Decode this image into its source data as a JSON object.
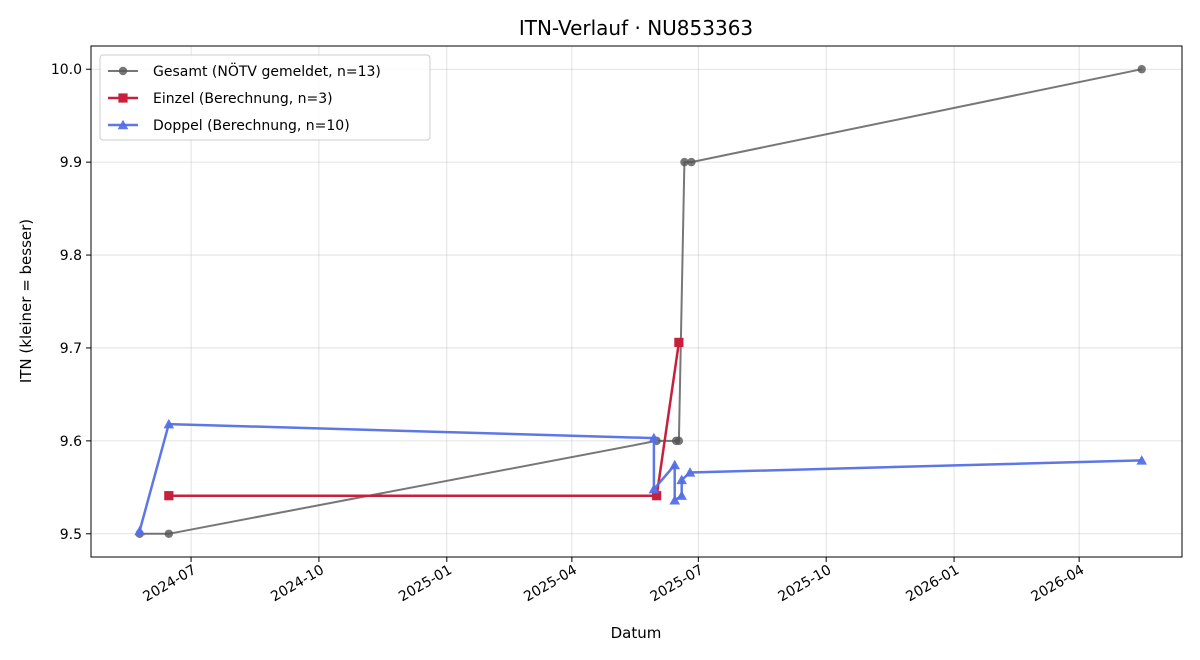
{
  "chart_data": {
    "type": "line",
    "title": "ITN-Verlauf · NU853363",
    "xlabel": "Datum",
    "ylabel": "ITN  (kleiner = besser)",
    "xlim": [
      "2024-04-20",
      "2026-06-14"
    ],
    "ylim": [
      9.475,
      10.025
    ],
    "x_ticks": [
      "2024-07-01",
      "2024-10-01",
      "2025-01-01",
      "2025-04-01",
      "2025-07-01",
      "2025-10-01",
      "2026-01-01",
      "2026-04-01"
    ],
    "x_tick_labels": [
      "2024-07",
      "2024-10",
      "2025-01",
      "2025-04",
      "2025-07",
      "2025-10",
      "2026-01",
      "2026-04"
    ],
    "y_ticks": [
      9.5,
      9.6,
      9.7,
      9.8,
      9.9,
      10.0
    ],
    "y_tick_labels": [
      "9.5",
      "9.6",
      "9.7",
      "9.8",
      "9.9",
      "10.0"
    ],
    "grid": true,
    "legend_position": "top-left",
    "series": [
      {
        "name": "Gesamt (NÖTV gemeldet, n=13)",
        "color": "#555555",
        "marker": "circle",
        "points": [
          {
            "x": "2024-05-25",
            "y": 9.5
          },
          {
            "x": "2024-06-15",
            "y": 9.5
          },
          {
            "x": "2025-06-01",
            "y": 9.6
          },
          {
            "x": "2025-06-15",
            "y": 9.6
          },
          {
            "x": "2025-06-17",
            "y": 9.6
          },
          {
            "x": "2025-06-21",
            "y": 9.9
          },
          {
            "x": "2025-06-26",
            "y": 9.9
          },
          {
            "x": "2026-05-16",
            "y": 10.0
          }
        ]
      },
      {
        "name": "Einzel (Berechnung, n=3)",
        "color": "#c8203c",
        "marker": "square",
        "points": [
          {
            "x": "2024-06-15",
            "y": 9.541
          },
          {
            "x": "2025-06-01",
            "y": 9.541
          },
          {
            "x": "2025-06-17",
            "y": 9.706
          }
        ]
      },
      {
        "name": "Doppel (Berechnung, n=10)",
        "color": "#5470e6",
        "marker": "triangle",
        "points": [
          {
            "x": "2024-05-25",
            "y": 9.503
          },
          {
            "x": "2024-06-15",
            "y": 9.618
          },
          {
            "x": "2025-05-30",
            "y": 9.603
          },
          {
            "x": "2025-05-30",
            "y": 9.548
          },
          {
            "x": "2025-06-14",
            "y": 9.574
          },
          {
            "x": "2025-06-14",
            "y": 9.536
          },
          {
            "x": "2025-06-19",
            "y": 9.541
          },
          {
            "x": "2025-06-19",
            "y": 9.558
          },
          {
            "x": "2025-06-25",
            "y": 9.566
          },
          {
            "x": "2026-05-16",
            "y": 9.579
          }
        ]
      }
    ]
  }
}
